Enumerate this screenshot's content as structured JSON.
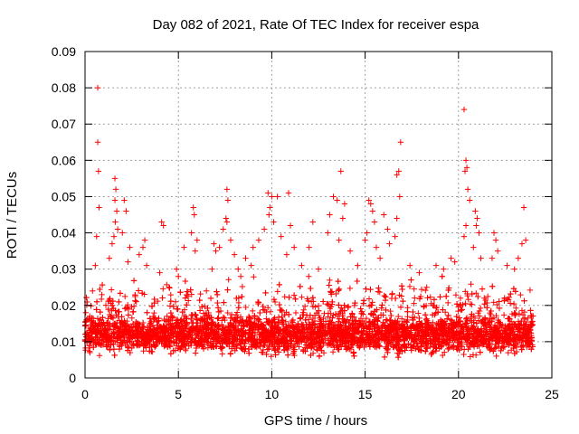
{
  "chart_data": {
    "type": "scatter",
    "title": "Day 082 of 2021, Rate Of TEC Index for receiver espa",
    "xlabel": "GPS time / hours",
    "ylabel": "ROTI / TECUs",
    "xlim": [
      0,
      25
    ],
    "ylim": [
      0,
      0.09
    ],
    "xticks": [
      0,
      5,
      10,
      15,
      20,
      25
    ],
    "yticks": [
      0,
      0.01,
      0.02,
      0.03,
      0.04,
      0.05,
      0.06,
      0.07,
      0.08,
      0.09
    ],
    "xtick_labels": [
      "0",
      "5",
      "10",
      "15",
      "20",
      "25"
    ],
    "ytick_labels": [
      "0",
      "0.01",
      "0.02",
      "0.03",
      "0.04",
      "0.05",
      "0.06",
      "0.07",
      "0.08",
      "0.09"
    ],
    "grid": true,
    "marker": "+",
    "color": "#ff0000",
    "x_range_of_data": [
      0,
      24
    ],
    "series": [
      {
        "points": [
          [
            0.68,
            0.08
          ],
          [
            0.68,
            0.065
          ],
          [
            0.72,
            0.057
          ],
          [
            0.75,
            0.047
          ],
          [
            0.62,
            0.039
          ],
          [
            0.55,
            0.031
          ],
          [
            0.4,
            0.024
          ],
          [
            1.6,
            0.055
          ],
          [
            1.65,
            0.052
          ],
          [
            1.6,
            0.049
          ],
          [
            1.7,
            0.046
          ],
          [
            1.62,
            0.043
          ],
          [
            1.75,
            0.041
          ],
          [
            1.55,
            0.039
          ],
          [
            1.45,
            0.037
          ],
          [
            1.3,
            0.033
          ],
          [
            2.1,
            0.049
          ],
          [
            2.2,
            0.046
          ],
          [
            2.0,
            0.04
          ],
          [
            2.4,
            0.036
          ],
          [
            2.3,
            0.032
          ],
          [
            3.2,
            0.038
          ],
          [
            3.1,
            0.036
          ],
          [
            2.9,
            0.034
          ],
          [
            3.3,
            0.031
          ],
          [
            4.1,
            0.043
          ],
          [
            4.2,
            0.042
          ],
          [
            4.0,
            0.029
          ],
          [
            4.5,
            0.025
          ],
          [
            4.9,
            0.03
          ],
          [
            5.0,
            0.028
          ],
          [
            5.3,
            0.036
          ],
          [
            5.8,
            0.047
          ],
          [
            5.85,
            0.045
          ],
          [
            5.7,
            0.04
          ],
          [
            6.0,
            0.038
          ],
          [
            5.9,
            0.035
          ],
          [
            6.5,
            0.024
          ],
          [
            6.8,
            0.03
          ],
          [
            7.0,
            0.035
          ],
          [
            7.2,
            0.036
          ],
          [
            6.9,
            0.037
          ],
          [
            7.6,
            0.052
          ],
          [
            7.65,
            0.049
          ],
          [
            7.55,
            0.044
          ],
          [
            7.6,
            0.043
          ],
          [
            7.4,
            0.041
          ],
          [
            7.8,
            0.038
          ],
          [
            8.0,
            0.034
          ],
          [
            8.2,
            0.03
          ],
          [
            8.6,
            0.033
          ],
          [
            8.9,
            0.031
          ],
          [
            9.0,
            0.036
          ],
          [
            9.3,
            0.038
          ],
          [
            9.8,
            0.051
          ],
          [
            9.9,
            0.047
          ],
          [
            9.85,
            0.045
          ],
          [
            10.0,
            0.05
          ],
          [
            10.3,
            0.05
          ],
          [
            10.1,
            0.043
          ],
          [
            10.5,
            0.039
          ],
          [
            9.6,
            0.041
          ],
          [
            10.8,
            0.034
          ],
          [
            10.9,
            0.051
          ],
          [
            11.0,
            0.042
          ],
          [
            11.2,
            0.036
          ],
          [
            11.6,
            0.031
          ],
          [
            12.0,
            0.036
          ],
          [
            12.2,
            0.043
          ],
          [
            12.5,
            0.03
          ],
          [
            13.0,
            0.04
          ],
          [
            13.1,
            0.045
          ],
          [
            13.3,
            0.05
          ],
          [
            13.5,
            0.049
          ],
          [
            13.7,
            0.057
          ],
          [
            13.8,
            0.044
          ],
          [
            13.9,
            0.048
          ],
          [
            13.6,
            0.038
          ],
          [
            14.2,
            0.035
          ],
          [
            14.6,
            0.031
          ],
          [
            15.0,
            0.038
          ],
          [
            15.2,
            0.049
          ],
          [
            15.3,
            0.048
          ],
          [
            15.4,
            0.046
          ],
          [
            15.5,
            0.043
          ],
          [
            15.1,
            0.04
          ],
          [
            15.6,
            0.036
          ],
          [
            15.8,
            0.033
          ],
          [
            16.0,
            0.045
          ],
          [
            16.2,
            0.041
          ],
          [
            16.3,
            0.037
          ],
          [
            16.7,
            0.056
          ],
          [
            16.8,
            0.057
          ],
          [
            16.9,
            0.065
          ],
          [
            16.85,
            0.05
          ],
          [
            16.7,
            0.044
          ],
          [
            16.6,
            0.039
          ],
          [
            17.4,
            0.031
          ],
          [
            17.9,
            0.029
          ],
          [
            18.3,
            0.025
          ],
          [
            18.8,
            0.031
          ],
          [
            19.2,
            0.03
          ],
          [
            19.6,
            0.033
          ],
          [
            19.8,
            0.032
          ],
          [
            20.3,
            0.074
          ],
          [
            20.4,
            0.06
          ],
          [
            20.45,
            0.058
          ],
          [
            20.35,
            0.057
          ],
          [
            20.5,
            0.052
          ],
          [
            20.6,
            0.049
          ],
          [
            20.4,
            0.042
          ],
          [
            20.3,
            0.039
          ],
          [
            20.9,
            0.046
          ],
          [
            21.0,
            0.044
          ],
          [
            20.95,
            0.042
          ],
          [
            21.1,
            0.04
          ],
          [
            20.8,
            0.036
          ],
          [
            21.2,
            0.033
          ],
          [
            21.9,
            0.04
          ],
          [
            22.0,
            0.038
          ],
          [
            22.1,
            0.035
          ],
          [
            21.8,
            0.033
          ],
          [
            22.6,
            0.031
          ],
          [
            23.0,
            0.03
          ],
          [
            23.2,
            0.033
          ],
          [
            23.4,
            0.037
          ],
          [
            23.5,
            0.047
          ],
          [
            23.6,
            0.038
          ]
        ]
      }
    ],
    "noise_band": {
      "seed": 82,
      "count": 5200,
      "y_center": 0.012,
      "y_min": 0.003,
      "y_max": 0.028
    }
  }
}
